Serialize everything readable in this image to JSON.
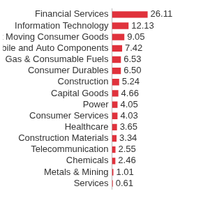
{
  "chart_data": {
    "type": "bar",
    "orientation": "horizontal",
    "categories": [
      "Financial Services",
      "Information Technology",
      "Fast Moving Consumer Goods",
      "Automobile and Auto Components",
      "Oil Gas & Consumable Fuels",
      "Consumer Durables",
      "Construction",
      "Capital Goods",
      "Power",
      "Consumer Services",
      "Healthcare",
      "Construction Materials",
      "Telecommunication",
      "Chemicals",
      "Metals & Mining",
      "Services"
    ],
    "values": [
      26.11,
      12.13,
      9.05,
      7.42,
      6.53,
      6.5,
      5.24,
      4.66,
      4.05,
      4.03,
      3.65,
      3.34,
      2.55,
      2.46,
      1.01,
      0.61
    ],
    "value_labels": [
      "26.11",
      "12.13",
      "9.05",
      "7.42",
      "6.53",
      "6.50",
      "5.24",
      "4.66",
      "4.05",
      "4.03",
      "3.65",
      "3.34",
      "2.55",
      "2.46",
      "1.01",
      "0.61"
    ],
    "color": "#e0323c",
    "xlim": [
      0,
      80
    ],
    "grid": false,
    "data_labels": true,
    "tick_labels": "y"
  }
}
